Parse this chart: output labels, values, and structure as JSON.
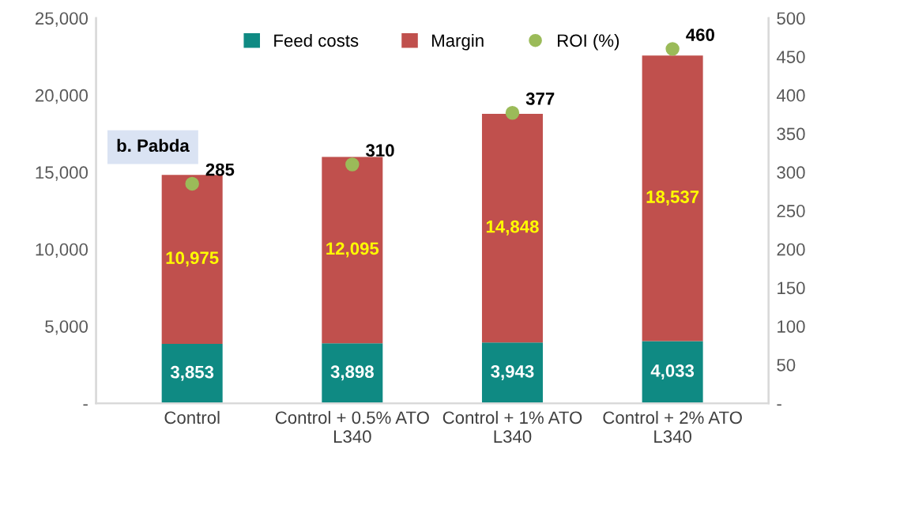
{
  "chart_data": {
    "type": "bar",
    "stacked": true,
    "categories": [
      "Control",
      "Control + 0.5% ATO\nL340",
      "Control + 1% ATO\nL340",
      "Control + 2% ATO\nL340"
    ],
    "series": [
      {
        "name": "Feed costs",
        "color": "#0f8a83",
        "values": [
          3853,
          3898,
          3943,
          4033
        ],
        "value_labels": [
          "3,853",
          "3,898",
          "3,943",
          "4,033"
        ]
      },
      {
        "name": "Margin",
        "color": "#c0504d",
        "values": [
          10975,
          12095,
          14848,
          18537
        ],
        "value_labels": [
          "10,975",
          "12,095",
          "14,848",
          "18,537"
        ]
      },
      {
        "name": "ROI (%)",
        "type": "scatter",
        "axis": "y2",
        "color": "#9bbb59",
        "marker": "circle",
        "values": [
          285,
          310,
          377,
          460
        ],
        "value_labels": [
          "285",
          "310",
          "377",
          "460"
        ]
      }
    ],
    "ylim": [
      0,
      25000
    ],
    "yticks": [
      {
        "value": 0,
        "label": "-"
      },
      {
        "value": 5000,
        "label": "5,000"
      },
      {
        "value": 10000,
        "label": "10,000"
      },
      {
        "value": 15000,
        "label": "15,000"
      },
      {
        "value": 20000,
        "label": "20,000"
      },
      {
        "value": 25000,
        "label": "25,000"
      }
    ],
    "y2lim": [
      0,
      500
    ],
    "y2ticks": [
      {
        "value": 0,
        "label": "-"
      },
      50,
      100,
      150,
      200,
      250,
      300,
      350,
      400,
      450,
      500
    ],
    "annotations": [
      "b. Pabda"
    ],
    "legend": "top",
    "grid": false
  }
}
